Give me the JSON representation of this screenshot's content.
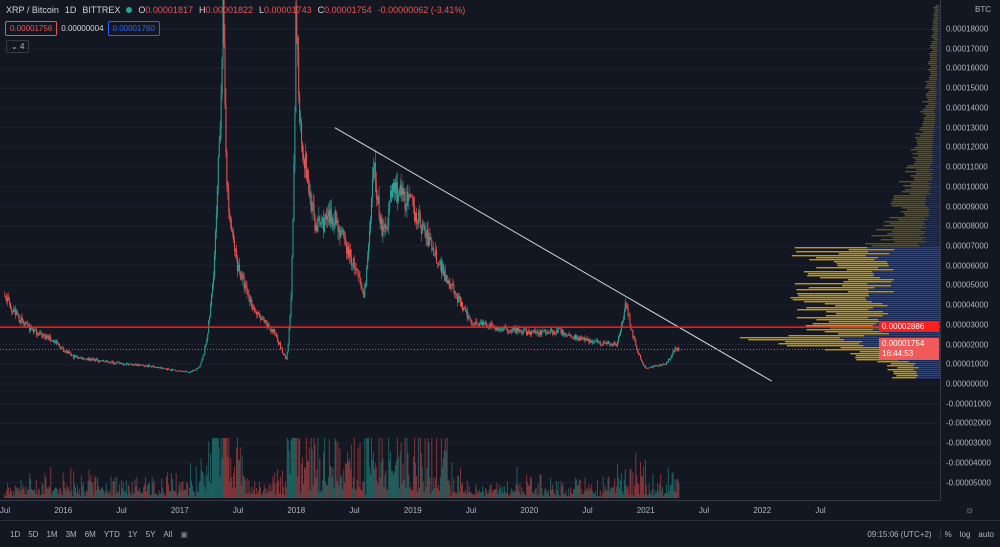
{
  "header": {
    "symbol": "XRP / Bitcoin",
    "interval": "1D",
    "exchange": "BITTREX",
    "o_label": "O",
    "o": "0.00001817",
    "h_label": "H",
    "h": "0.00001822",
    "l_label": "L",
    "l": "0.00001743",
    "c_label": "C",
    "c": "0.00001754",
    "change": "-0.00000062 (-3.41%)"
  },
  "quote": {
    "bid": "0.00001756",
    "spread": "0.00000004",
    "ask": "0.00001760"
  },
  "indicators_toggle": "4",
  "price_axis": {
    "currency": "BTC",
    "ticks": [
      "0.00018000",
      "0.00017000",
      "0.00016000",
      "0.00015000",
      "0.00014000",
      "0.00013000",
      "0.00012000",
      "0.00011000",
      "0.00010000",
      "0.00009000",
      "0.00008000",
      "0.00007000",
      "0.00006000",
      "0.00005000",
      "0.00004000",
      "0.00003000",
      "0.00002000",
      "0.00001000",
      "0.00000000",
      "-0.00001000",
      "-0.00002000",
      "-0.00003000",
      "-0.00004000",
      "-0.00005000"
    ],
    "horizontal_line_label": "0.00002886",
    "last_price_label": "0.00001754",
    "countdown": "16:44:53"
  },
  "time_axis": [
    "Jul",
    "2016",
    "Jul",
    "2017",
    "Jul",
    "2018",
    "Jul",
    "2019",
    "Jul",
    "2020",
    "Jul",
    "2021",
    "Jul",
    "2022",
    "Jul"
  ],
  "toolbar": {
    "ranges": [
      "1D",
      "5D",
      "1M",
      "3M",
      "6M",
      "YTD",
      "1Y",
      "5Y",
      "All"
    ],
    "clock": "09:15:06 (UTC+2)",
    "percent": "%",
    "log": "log",
    "auto": "auto"
  },
  "colors": {
    "up": "#26a69a",
    "down": "#ef5350",
    "hline": "#ff1e1e",
    "trendline": "#d1d4dc",
    "vp_up": "#2962ff",
    "vp_down": "#f0b90b"
  },
  "chart_data": {
    "type": "candlestick",
    "horizontal_line": 2.886e-05,
    "last_price": 1.754e-05,
    "trendline": [
      [
        "2018-05",
        0.00013
      ],
      [
        "2022-02",
        1.5e-06
      ]
    ],
    "price_path": [
      [
        "2015-07",
        4.5e-05
      ],
      [
        "2015-09",
        3e-05
      ],
      [
        "2015-12",
        2.2e-05
      ],
      [
        "2016-02",
        1.4e-05
      ],
      [
        "2016-06",
        1.1e-05
      ],
      [
        "2016-10",
        9e-06
      ],
      [
        "2017-02",
        6e-06
      ],
      [
        "2017-03",
        8e-06
      ],
      [
        "2017-04",
        3e-05
      ],
      [
        "2017-05",
        0.00011
      ],
      [
        "2017-05",
        0.00019
      ],
      [
        "2017-06",
        9e-05
      ],
      [
        "2017-07",
        6e-05
      ],
      [
        "2017-09",
        3.5e-05
      ],
      [
        "2017-11",
        2.5e-05
      ],
      [
        "2017-12",
        1.2e-05
      ],
      [
        "2018-01",
        0.00019
      ],
      [
        "2018-01",
        0.00013
      ],
      [
        "2018-03",
        8e-05
      ],
      [
        "2018-05",
        8.5e-05
      ],
      [
        "2018-07",
        6e-05
      ],
      [
        "2018-08",
        4.5e-05
      ],
      [
        "2018-09",
        0.00011
      ],
      [
        "2018-10",
        7.5e-05
      ],
      [
        "2018-11",
        0.0001
      ],
      [
        "2019-01",
        9e-05
      ],
      [
        "2019-03",
        7e-05
      ],
      [
        "2019-05",
        5e-05
      ],
      [
        "2019-07",
        3.2e-05
      ],
      [
        "2019-10",
        2.8e-05
      ],
      [
        "2020-01",
        2.6e-05
      ],
      [
        "2020-04",
        2.7e-05
      ],
      [
        "2020-07",
        2.2e-05
      ],
      [
        "2020-10",
        2e-05
      ],
      [
        "2020-11",
        4.2e-05
      ],
      [
        "2020-12",
        2e-05
      ],
      [
        "2021-01",
        8e-06
      ],
      [
        "2021-02",
        9e-06
      ],
      [
        "2021-03",
        1e-05
      ],
      [
        "2021-04",
        1.75e-05
      ]
    ]
  }
}
